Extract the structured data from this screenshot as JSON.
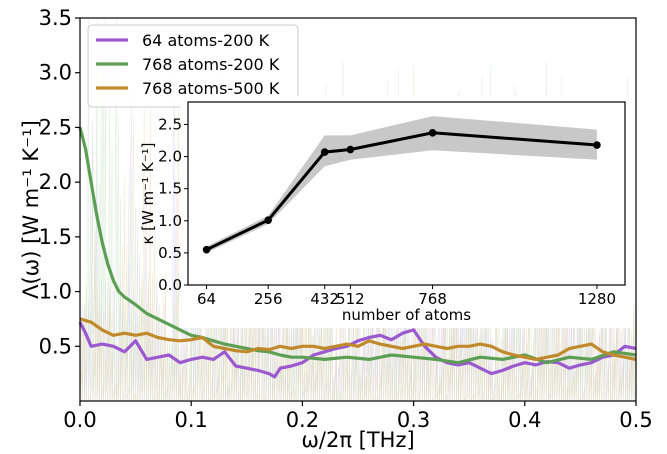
{
  "chart_data": [
    {
      "type": "line",
      "title": "",
      "xlabel": "ω/2π [THz]",
      "ylabel": "Λ(ω) [W m⁻¹ K⁻¹]",
      "xlim": [
        0.0,
        0.5
      ],
      "ylim": [
        0.0,
        3.5
      ],
      "xticks": [
        "0.0",
        "0.1",
        "0.2",
        "0.3",
        "0.4",
        "0.5"
      ],
      "yticks": [
        "0.5",
        "1.0",
        "1.5",
        "2.0",
        "2.5",
        "3.0",
        "3.5"
      ],
      "legend_position": "top-left",
      "series": [
        {
          "name": "64 atoms-200 K",
          "color": "#9b59d0",
          "x": [
            0.0,
            0.005,
            0.01,
            0.02,
            0.03,
            0.04,
            0.05,
            0.06,
            0.07,
            0.08,
            0.09,
            0.1,
            0.11,
            0.12,
            0.13,
            0.14,
            0.15,
            0.16,
            0.17,
            0.175,
            0.18,
            0.19,
            0.2,
            0.21,
            0.22,
            0.23,
            0.24,
            0.25,
            0.26,
            0.27,
            0.28,
            0.29,
            0.3,
            0.31,
            0.32,
            0.33,
            0.34,
            0.35,
            0.36,
            0.37,
            0.38,
            0.39,
            0.4,
            0.41,
            0.42,
            0.43,
            0.44,
            0.45,
            0.46,
            0.47,
            0.48,
            0.49,
            0.5
          ],
          "y": [
            0.72,
            0.62,
            0.5,
            0.52,
            0.5,
            0.45,
            0.55,
            0.38,
            0.4,
            0.42,
            0.35,
            0.38,
            0.4,
            0.38,
            0.45,
            0.32,
            0.3,
            0.28,
            0.25,
            0.22,
            0.3,
            0.32,
            0.35,
            0.42,
            0.45,
            0.48,
            0.5,
            0.55,
            0.58,
            0.6,
            0.56,
            0.62,
            0.65,
            0.5,
            0.4,
            0.35,
            0.33,
            0.35,
            0.3,
            0.25,
            0.28,
            0.32,
            0.35,
            0.33,
            0.36,
            0.35,
            0.3,
            0.33,
            0.35,
            0.4,
            0.42,
            0.5,
            0.48
          ]
        },
        {
          "name": "768 atoms-200 K",
          "color": "#5c9e54",
          "x": [
            0.0,
            0.005,
            0.01,
            0.015,
            0.02,
            0.025,
            0.03,
            0.035,
            0.04,
            0.05,
            0.06,
            0.07,
            0.08,
            0.09,
            0.1,
            0.11,
            0.12,
            0.13,
            0.14,
            0.15,
            0.16,
            0.17,
            0.18,
            0.19,
            0.2,
            0.22,
            0.24,
            0.26,
            0.28,
            0.3,
            0.32,
            0.34,
            0.36,
            0.38,
            0.4,
            0.42,
            0.44,
            0.46,
            0.48,
            0.5
          ],
          "y": [
            2.5,
            2.3,
            2.0,
            1.7,
            1.45,
            1.25,
            1.1,
            1.0,
            0.95,
            0.88,
            0.8,
            0.75,
            0.7,
            0.65,
            0.6,
            0.58,
            0.55,
            0.52,
            0.5,
            0.48,
            0.46,
            0.45,
            0.42,
            0.4,
            0.4,
            0.38,
            0.4,
            0.38,
            0.42,
            0.4,
            0.38,
            0.35,
            0.4,
            0.38,
            0.42,
            0.35,
            0.4,
            0.38,
            0.45,
            0.42
          ]
        },
        {
          "name": "768 atoms-500 K",
          "color": "#c08a2c",
          "x": [
            0.0,
            0.01,
            0.02,
            0.03,
            0.04,
            0.05,
            0.06,
            0.07,
            0.08,
            0.09,
            0.1,
            0.11,
            0.12,
            0.13,
            0.14,
            0.15,
            0.16,
            0.17,
            0.18,
            0.19,
            0.2,
            0.21,
            0.22,
            0.23,
            0.24,
            0.25,
            0.26,
            0.27,
            0.28,
            0.29,
            0.3,
            0.31,
            0.32,
            0.33,
            0.34,
            0.35,
            0.36,
            0.37,
            0.38,
            0.39,
            0.4,
            0.41,
            0.42,
            0.43,
            0.44,
            0.45,
            0.46,
            0.47,
            0.48,
            0.49,
            0.5
          ],
          "y": [
            0.75,
            0.72,
            0.65,
            0.6,
            0.62,
            0.6,
            0.62,
            0.58,
            0.56,
            0.55,
            0.56,
            0.58,
            0.5,
            0.48,
            0.46,
            0.45,
            0.48,
            0.47,
            0.5,
            0.48,
            0.5,
            0.5,
            0.48,
            0.5,
            0.52,
            0.5,
            0.55,
            0.52,
            0.5,
            0.48,
            0.5,
            0.52,
            0.5,
            0.48,
            0.5,
            0.5,
            0.52,
            0.5,
            0.45,
            0.42,
            0.4,
            0.38,
            0.4,
            0.42,
            0.48,
            0.5,
            0.52,
            0.45,
            0.42,
            0.4,
            0.38
          ]
        }
      ]
    },
    {
      "type": "line",
      "title": "",
      "xlabel": "number of atoms",
      "ylabel": "κ [W m⁻¹ K⁻¹]",
      "xticks": [
        "64",
        "256",
        "432",
        "512",
        "768",
        "1280"
      ],
      "yticks": [
        "0.0",
        "0.5",
        "1.0",
        "1.5",
        "2.0",
        "2.5"
      ],
      "xlim": [
        0,
        1330
      ],
      "ylim": [
        0.0,
        2.85
      ],
      "series": [
        {
          "color": "#000000",
          "band_color": "#c8c8c8",
          "x": [
            64,
            256,
            432,
            512,
            768,
            1280
          ],
          "y": [
            0.55,
            1.01,
            2.07,
            2.11,
            2.37,
            2.18
          ],
          "lower": [
            0.5,
            0.95,
            1.85,
            1.95,
            2.1,
            1.95
          ],
          "upper": [
            0.6,
            1.08,
            2.33,
            2.33,
            2.63,
            2.42
          ]
        }
      ]
    }
  ]
}
